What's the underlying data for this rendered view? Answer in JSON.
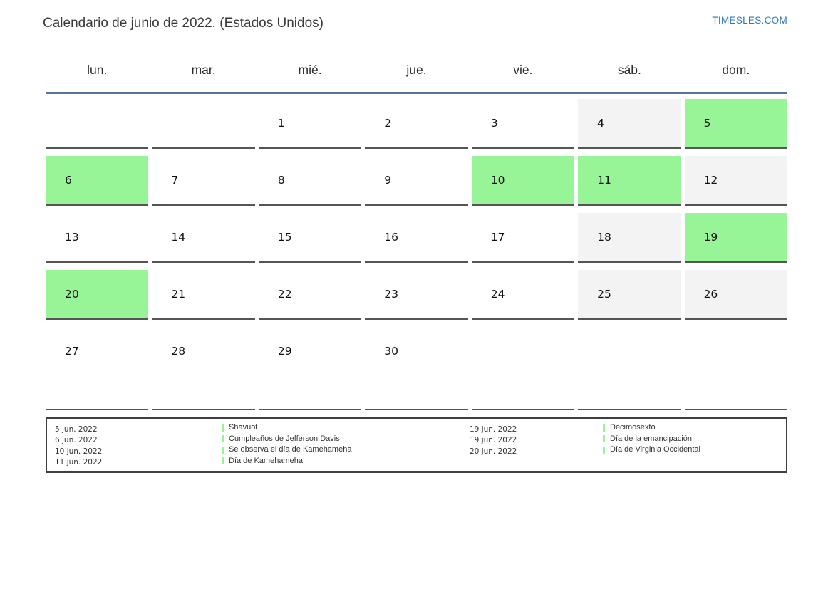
{
  "title": "Calendario de junio de 2022. (Estados Unidos)",
  "site_link": "TIMESLES.COM",
  "colors": {
    "holiday": "#97F497",
    "weekend": "#F3F3F3",
    "header_line": "#54749E",
    "link": "#2E79BE",
    "cell_border": "#555555",
    "legend_border": "#3F3F3F"
  },
  "weekday_headers": [
    "lun.",
    "mar.",
    "mié.",
    "jue.",
    "vie.",
    "sáb.",
    "dom."
  ],
  "weeks": [
    [
      {
        "day": "",
        "type": "empty"
      },
      {
        "day": "",
        "type": "empty"
      },
      {
        "day": "1",
        "type": "normal"
      },
      {
        "day": "2",
        "type": "normal"
      },
      {
        "day": "3",
        "type": "normal"
      },
      {
        "day": "4",
        "type": "weekend"
      },
      {
        "day": "5",
        "type": "holiday"
      }
    ],
    [
      {
        "day": "6",
        "type": "holiday"
      },
      {
        "day": "7",
        "type": "normal"
      },
      {
        "day": "8",
        "type": "normal"
      },
      {
        "day": "9",
        "type": "normal"
      },
      {
        "day": "10",
        "type": "holiday"
      },
      {
        "day": "11",
        "type": "holiday"
      },
      {
        "day": "12",
        "type": "weekend"
      }
    ],
    [
      {
        "day": "13",
        "type": "normal"
      },
      {
        "day": "14",
        "type": "normal"
      },
      {
        "day": "15",
        "type": "normal"
      },
      {
        "day": "16",
        "type": "normal"
      },
      {
        "day": "17",
        "type": "normal"
      },
      {
        "day": "18",
        "type": "weekend"
      },
      {
        "day": "19",
        "type": "holiday"
      }
    ],
    [
      {
        "day": "20",
        "type": "holiday"
      },
      {
        "day": "21",
        "type": "normal"
      },
      {
        "day": "22",
        "type": "normal"
      },
      {
        "day": "23",
        "type": "normal"
      },
      {
        "day": "24",
        "type": "normal"
      },
      {
        "day": "25",
        "type": "weekend"
      },
      {
        "day": "26",
        "type": "weekend"
      }
    ],
    [
      {
        "day": "27",
        "type": "normal"
      },
      {
        "day": "28",
        "type": "normal"
      },
      {
        "day": "29",
        "type": "normal"
      },
      {
        "day": "30",
        "type": "normal"
      },
      {
        "day": "",
        "type": "empty"
      },
      {
        "day": "",
        "type": "empty"
      },
      {
        "day": "",
        "type": "empty"
      }
    ]
  ],
  "legend": {
    "left": [
      {
        "date": "5 jun. 2022",
        "label": "Shavuot"
      },
      {
        "date": "6 jun. 2022",
        "label": "Cumpleaños de Jefferson Davis"
      },
      {
        "date": "10 jun. 2022",
        "label": "Se observa el día de Kamehameha"
      },
      {
        "date": "11 jun. 2022",
        "label": "Día de Kamehameha"
      }
    ],
    "right": [
      {
        "date": "19 jun. 2022",
        "label": "Decimosexto"
      },
      {
        "date": "19 jun. 2022",
        "label": "Día de la emancipación"
      },
      {
        "date": "20 jun. 2022",
        "label": "Día de Virginia Occidental"
      }
    ]
  }
}
